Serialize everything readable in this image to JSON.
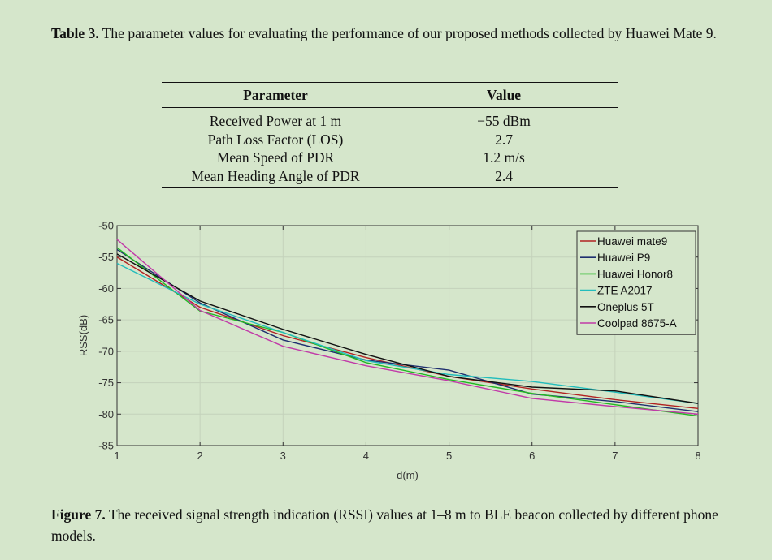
{
  "table_caption": {
    "label": "Table 3.",
    "text": " The parameter values for evaluating the performance of our proposed methods collected by Huawei Mate 9."
  },
  "table": {
    "headers": [
      "Parameter",
      "Value"
    ],
    "rows": [
      [
        "Received Power at 1 m",
        "−55 dBm"
      ],
      [
        "Path Loss Factor (LOS)",
        "2.7"
      ],
      [
        "Mean Speed of PDR",
        "1.2 m/s"
      ],
      [
        "Mean Heading Angle of PDR",
        "2.4"
      ]
    ]
  },
  "figure_caption": {
    "label": "Figure 7.",
    "text": " The received signal strength indication (RSSI) values at 1–8 m to BLE beacon collected by different phone models."
  },
  "chart_data": {
    "type": "line",
    "xlabel": "d(m)",
    "ylabel": "RSS(dB)",
    "x": [
      1,
      2,
      3,
      4,
      5,
      6,
      7,
      8
    ],
    "xlim": [
      1,
      8
    ],
    "ylim": [
      -85,
      -50
    ],
    "xticks": [
      "1",
      "2",
      "3",
      "4",
      "5",
      "6",
      "7",
      "8"
    ],
    "yticks": [
      "-50",
      "-55",
      "-60",
      "-65",
      "-70",
      "-75",
      "-80",
      "-85"
    ],
    "grid": true,
    "legend_position": "top-right",
    "series": [
      {
        "name": "Huawei mate9",
        "color": "#b22222",
        "values": [
          -55,
          -63,
          -67.5,
          -71,
          -74,
          -76,
          -77.7,
          -79.1
        ]
      },
      {
        "name": "Huawei P9",
        "color": "#1f2f6f",
        "values": [
          -53.8,
          -62.3,
          -68.2,
          -71.4,
          -73,
          -76.8,
          -78,
          -79.6
        ]
      },
      {
        "name": "Huawei Honor8",
        "color": "#22b922",
        "values": [
          -53.5,
          -63.6,
          -67,
          -71.8,
          -74.5,
          -76.7,
          -78.5,
          -80.3
        ]
      },
      {
        "name": "ZTE A2017",
        "color": "#22bcbc",
        "values": [
          -56,
          -62.5,
          -67,
          -71.5,
          -73.7,
          -74.8,
          -76.5,
          -78.3
        ]
      },
      {
        "name": "Oneplus 5T",
        "color": "#111111",
        "values": [
          -54.5,
          -62,
          -66.5,
          -70.5,
          -74,
          -75.7,
          -76.3,
          -78.3
        ]
      },
      {
        "name": "Coolpad 8675-A",
        "color": "#c13aa8",
        "values": [
          -52.2,
          -63.5,
          -69.2,
          -72.3,
          -74.7,
          -77.5,
          -78.8,
          -80
        ]
      }
    ]
  }
}
